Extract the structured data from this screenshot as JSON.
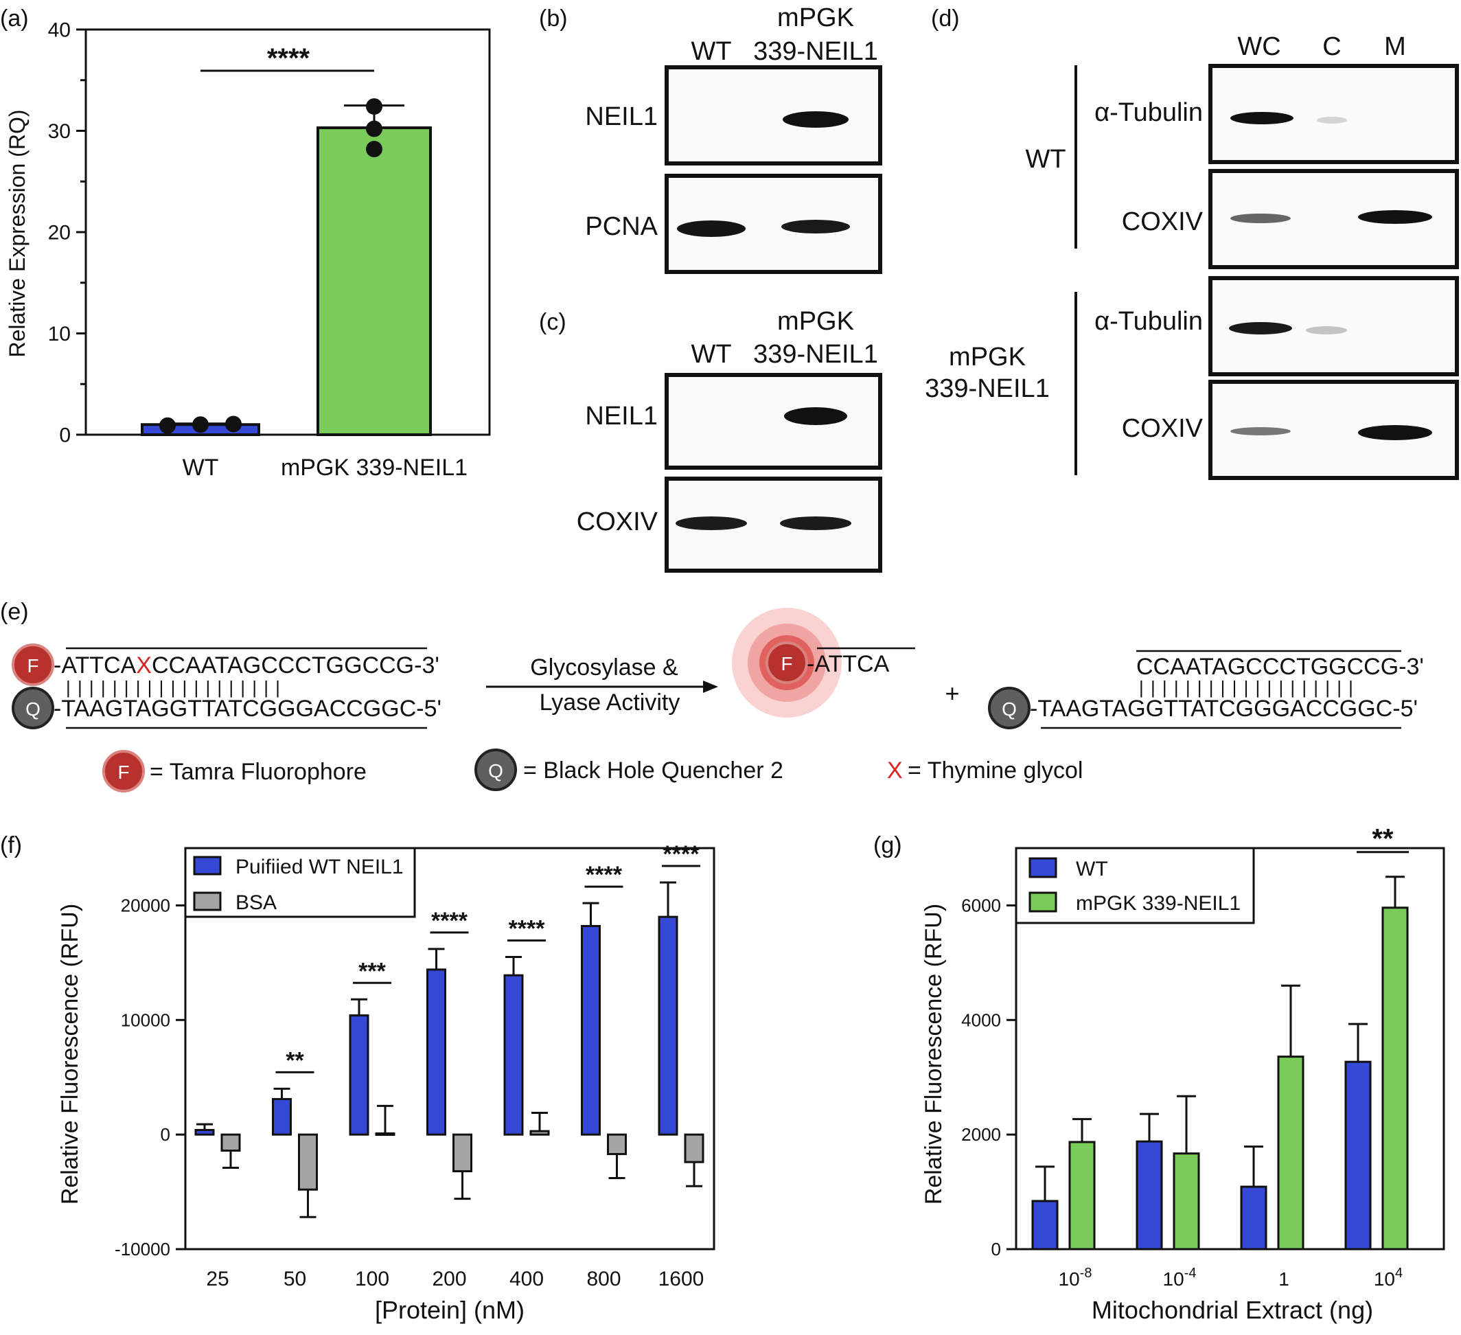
{
  "panel_labels": {
    "a": "(a)",
    "b": "(b)",
    "c": "(c)",
    "d": "(d)",
    "e": "(e)",
    "f": "(f)",
    "g": "(g)"
  },
  "colors": {
    "wt": "#3548d6",
    "mpgk": "#7acc5a",
    "bsa": "#a5a5a5",
    "red": "#d9231f",
    "fluor": "#b7322f",
    "quench": "#5f5f5f"
  },
  "chart_data": [
    {
      "panel": "a",
      "type": "bar",
      "categories": [
        "WT",
        "mPGK 339-NEIL1"
      ],
      "values": [
        1.0,
        30.3
      ],
      "error": [
        0.1,
        2.2
      ],
      "points": [
        [
          0.9,
          1.0,
          1.05
        ],
        [
          28.2,
          30.2,
          32.4
        ]
      ],
      "ylabel": "Relative Expression (RQ)",
      "ylim": [
        0,
        40
      ],
      "yticks": [
        "0",
        "10",
        "20",
        "30",
        "40"
      ],
      "significance": "****",
      "bar_colors": [
        "#3548d6",
        "#7acc5a"
      ]
    },
    {
      "panel": "f",
      "type": "bar",
      "categories": [
        "25",
        "50",
        "100",
        "200",
        "400",
        "800",
        "1600"
      ],
      "series": [
        {
          "name": "Puifiied WT NEIL1",
          "color": "#3548d6",
          "values": [
            400,
            3100,
            10400,
            14400,
            13900,
            18200,
            19000
          ],
          "error": [
            500,
            900,
            1400,
            1800,
            1600,
            2000,
            3000
          ]
        },
        {
          "name": "BSA",
          "color": "#a5a5a5",
          "values": [
            -1400,
            -4800,
            100,
            -3200,
            300,
            -1700,
            -2400
          ],
          "error": [
            1500,
            2400,
            2400,
            2400,
            1600,
            2100,
            2100
          ]
        }
      ],
      "significance": [
        "",
        "**",
        "***",
        "****",
        "****",
        "****",
        "****"
      ],
      "xlabel": "[Protein] (nM)",
      "ylabel": "Relative Fluorescence (RFU)",
      "ylim": [
        -10000,
        25000
      ],
      "yticks": [
        "-10000",
        "0",
        "10000",
        "20000"
      ],
      "legend": "top-left"
    },
    {
      "panel": "g",
      "type": "bar",
      "categories": [
        "10",
        "10",
        "1",
        "10"
      ],
      "category_exponents": [
        "-8",
        "-4",
        "",
        "4"
      ],
      "series": [
        {
          "name": "WT",
          "color": "#3548d6",
          "values": [
            840,
            1880,
            1090,
            3270
          ],
          "error": [
            600,
            480,
            700,
            660
          ]
        },
        {
          "name": "mPGK 339-NEIL1",
          "color": "#7acc5a",
          "values": [
            1870,
            1670,
            3360,
            5960
          ],
          "error": [
            400,
            1000,
            1240,
            540
          ]
        }
      ],
      "significance": [
        "",
        "",
        "",
        "**"
      ],
      "xlabel": "Mitochondrial Extract (ng)",
      "ylabel": "Relative Fluorescence (RFU)",
      "ylim": [
        0,
        7000
      ],
      "yticks": [
        "0",
        "2000",
        "4000",
        "6000"
      ],
      "legend": "top-left"
    }
  ],
  "blot_b": {
    "col_wt": "WT",
    "col_mpgk_1": "mPGK",
    "col_mpgk_2": "339-NEIL1",
    "row_1": "NEIL1",
    "row_2": "PCNA"
  },
  "blot_c": {
    "col_wt": "WT",
    "col_mpgk_1": "mPGK",
    "col_mpgk_2": "339-NEIL1",
    "row_1": "NEIL1",
    "row_2": "COXIV"
  },
  "blot_d": {
    "col_wc": "WC",
    "col_c": "C",
    "col_m": "M",
    "group_wt": "WT",
    "group_mpgk_1": "mPGK",
    "group_mpgk_2": "339-NEIL1",
    "row_tub_1": "α-Tubulin",
    "row_cox_1": "COXIV",
    "row_tub_2": "α-Tubulin",
    "row_cox_2": "COXIV"
  },
  "scheme": {
    "F": "F",
    "Q": "Q",
    "top_prefix": "-ATTCA",
    "top_x": "X",
    "top_suffix": "CCAATAGCCCTGGCCG-3'",
    "ticks": "|||||||||||||||||||",
    "bottom": "-TAAGTAGGTTATCGGGACCGGC-5'",
    "arrow_1": "Glycosylase &",
    "arrow_2": "Lyase Activity",
    "product_1": "-ATTCA",
    "plus": "+",
    "product_2_top": "CCAATAGCCCTGGCCG-3'",
    "product_2_bottom": "-TAAGTAGGTTATCGGGACCGGC-5'",
    "legend_f": "= Tamra Fluorophore",
    "legend_q": "= Black Hole Quencher 2",
    "legend_x_symbol": "X",
    "legend_x": "= Thymine glycol"
  }
}
